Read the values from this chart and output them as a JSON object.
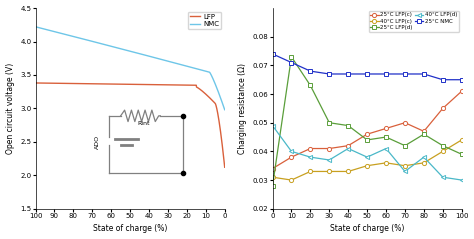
{
  "left_xlabel": "State of charge (%)",
  "left_ylabel": "Open circuit voltage (V)",
  "left_xlim": [
    100,
    0
  ],
  "left_ylim": [
    1.5,
    4.5
  ],
  "left_yticks": [
    1.5,
    2.0,
    2.5,
    3.0,
    3.5,
    4.0,
    4.5
  ],
  "left_xticks": [
    100,
    90,
    80,
    70,
    60,
    50,
    40,
    30,
    20,
    10,
    0
  ],
  "lfp_color": "#d9603b",
  "nmc_color": "#6ec6e8",
  "right_xlabel": "State of charge (%)",
  "right_ylabel": "Charging resistance (Ω)",
  "right_xlim": [
    0,
    100
  ],
  "right_ylim": [
    0.02,
    0.09
  ],
  "right_yticks": [
    0.02,
    0.03,
    0.04,
    0.05,
    0.06,
    0.07,
    0.08
  ],
  "right_xticks": [
    0,
    10,
    20,
    30,
    40,
    50,
    60,
    70,
    80,
    90,
    100
  ],
  "soc_x": [
    0,
    10,
    20,
    30,
    40,
    50,
    60,
    70,
    80,
    90,
    100
  ],
  "r_25lfp_c": [
    0.034,
    0.038,
    0.041,
    0.041,
    0.042,
    0.046,
    0.048,
    0.05,
    0.047,
    0.055,
    0.061
  ],
  "r_40lfp_c": [
    0.031,
    0.03,
    0.033,
    0.033,
    0.033,
    0.035,
    0.036,
    0.035,
    0.036,
    0.04,
    0.044
  ],
  "r_25lfp_d": [
    0.028,
    0.073,
    0.063,
    0.05,
    0.049,
    0.044,
    0.045,
    0.042,
    0.046,
    0.042,
    0.039
  ],
  "r_40lfp_d": [
    0.049,
    0.04,
    0.038,
    0.037,
    0.041,
    0.038,
    0.041,
    0.033,
    0.038,
    0.031,
    0.03
  ],
  "r_25nmc": [
    0.074,
    0.071,
    0.068,
    0.067,
    0.067,
    0.067,
    0.067,
    0.067,
    0.067,
    0.065,
    0.065
  ],
  "c25lfp_color": "#d9603b",
  "c40lfp_color": "#c8a020",
  "d25lfp_color": "#5a9e3a",
  "d40lfp_color": "#4ab8c8",
  "nmc25_color": "#2030c8",
  "circuit_color": "#808080"
}
